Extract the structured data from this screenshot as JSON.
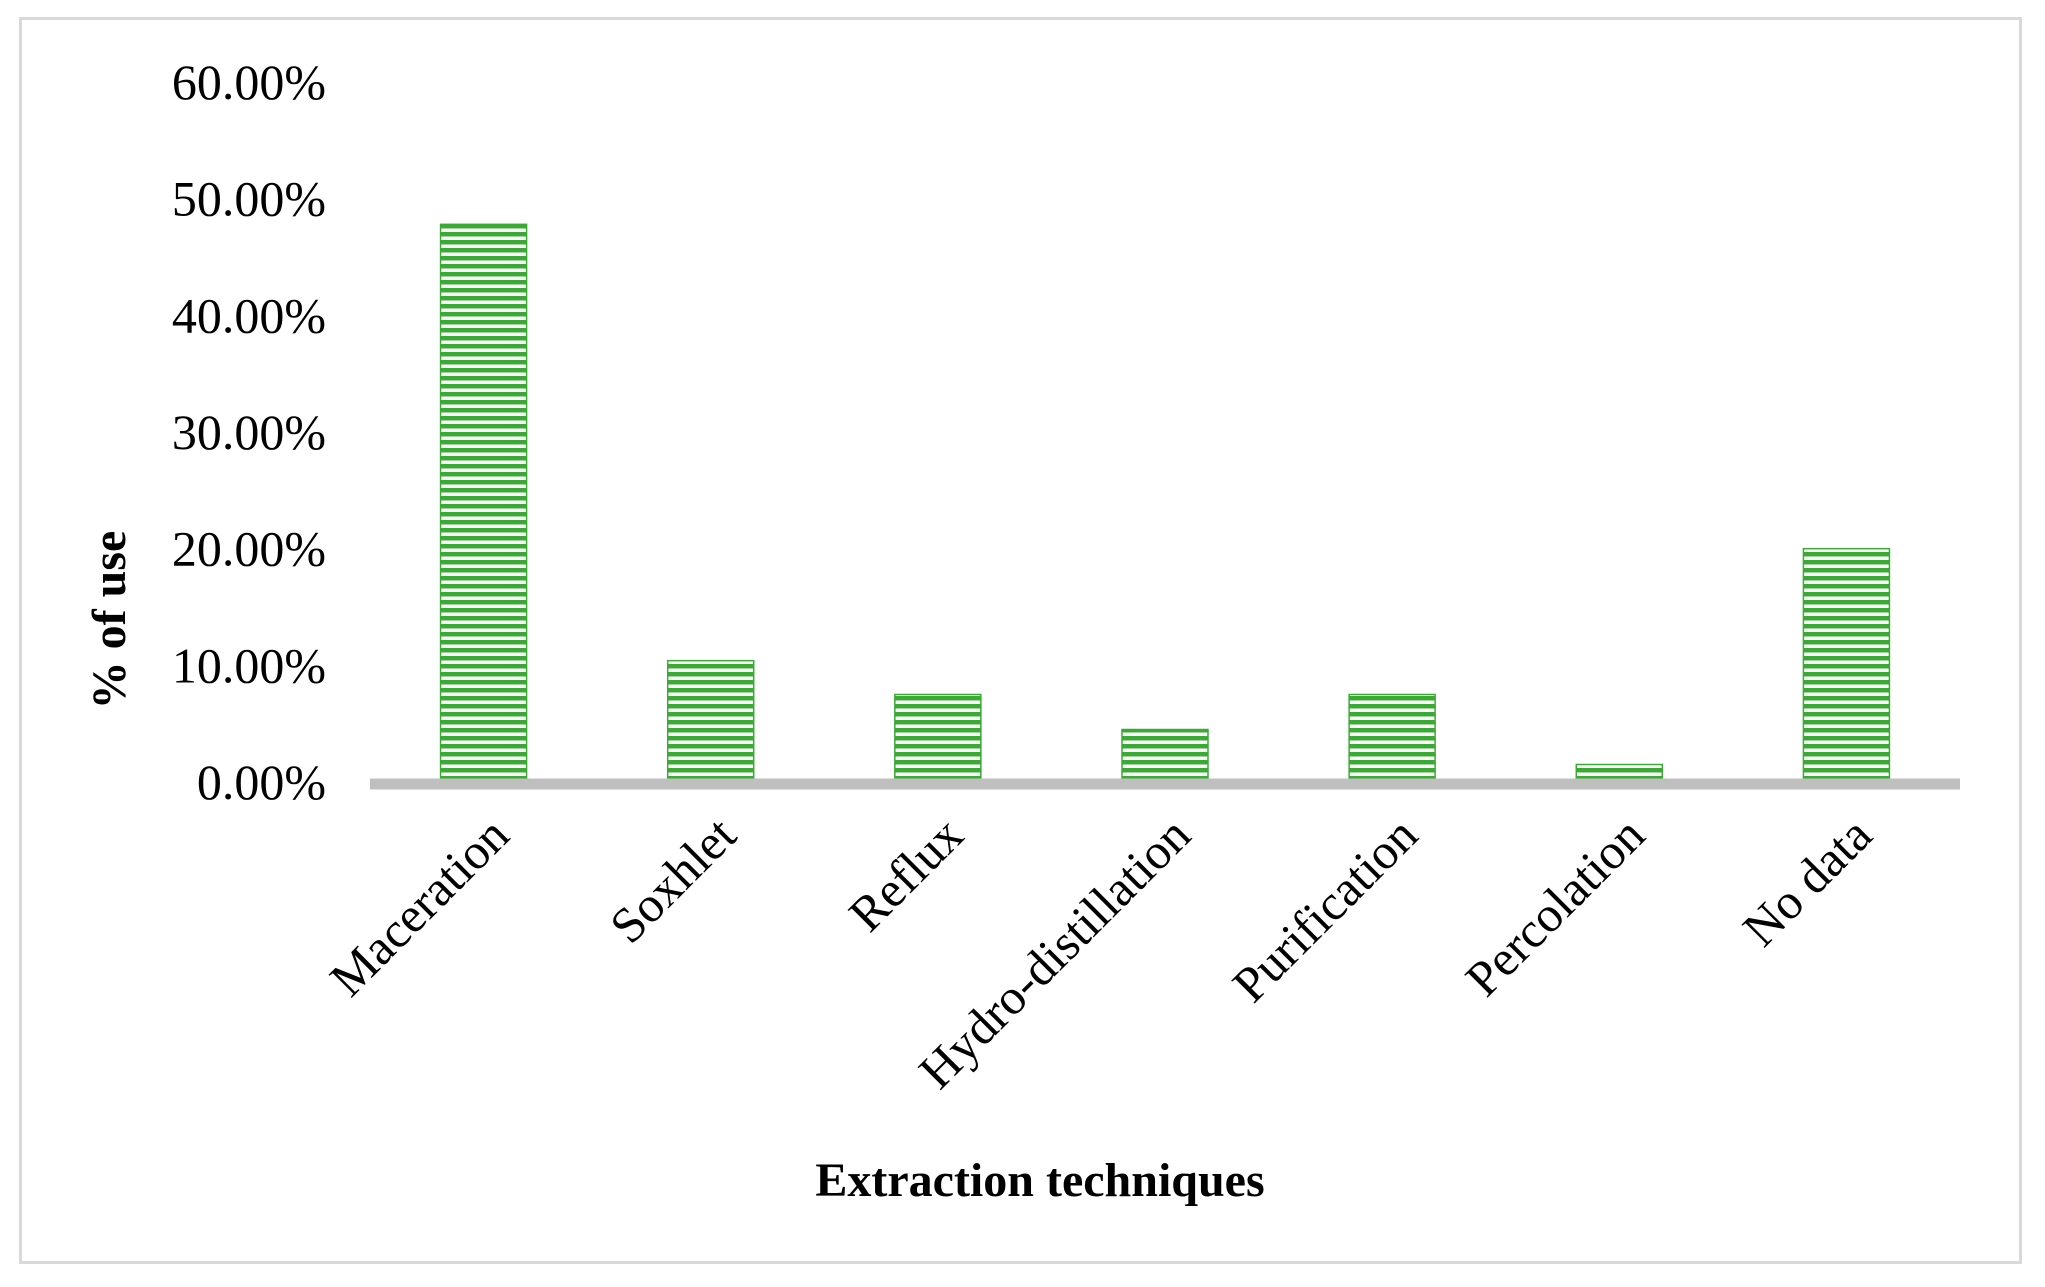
{
  "chart_data": {
    "type": "bar",
    "title": "",
    "xlabel": "Extraction techniques",
    "ylabel": "% of use",
    "categories": [
      "Maceration",
      "Soxhlet",
      "Reflux",
      "Hydro-distillation",
      "Purification",
      "Percolation",
      "No data"
    ],
    "values": [
      47.8,
      10.4,
      7.5,
      4.5,
      7.5,
      1.5,
      20.0
    ],
    "ylim": [
      0,
      60
    ],
    "yticks": [
      0,
      10,
      20,
      30,
      40,
      50,
      60
    ],
    "ytick_labels": [
      "0.00%",
      "10.00%",
      "20.00%",
      "30.00%",
      "40.00%",
      "50.00%",
      "60.00%"
    ],
    "grid": false,
    "legend": "none",
    "bar_color": "#3aaa35",
    "bar_stripe_color": "#ffffff",
    "axis_color": "#bfbfbf"
  }
}
